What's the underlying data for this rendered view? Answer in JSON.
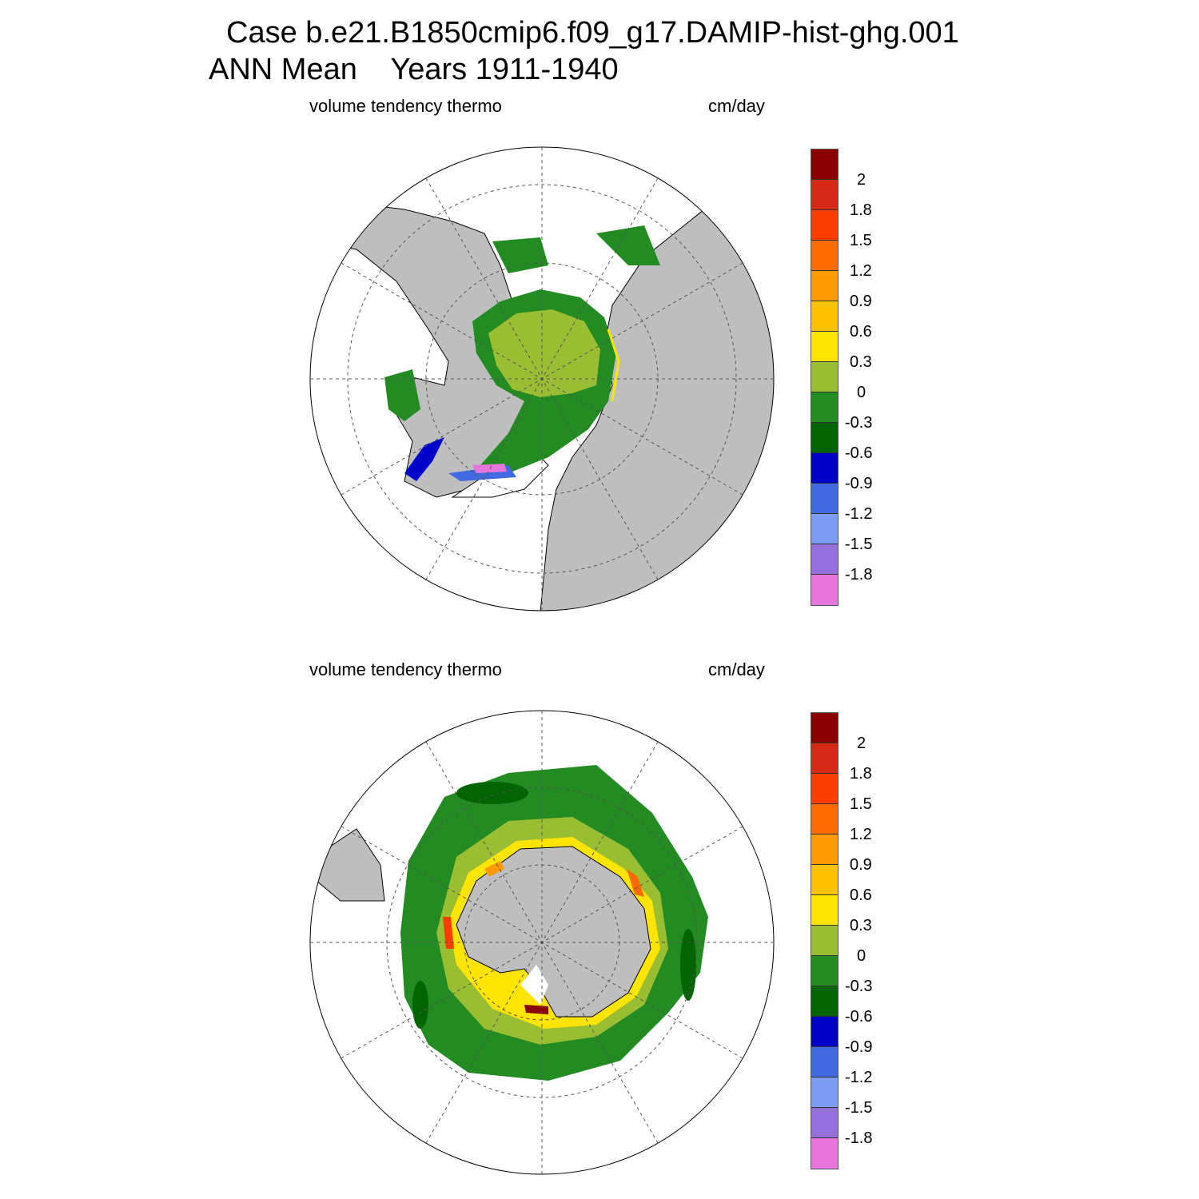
{
  "header": {
    "case_title": "Case b.e21.B1850cmip6.f09_g17.DAMIP-hist-ghg.001",
    "period_label": "ANN Mean",
    "years_label": "Years 1911-1940"
  },
  "panels": [
    {
      "hemisphere": "north",
      "variable_label": "volume tendency thermo",
      "units_label": "cm/day"
    },
    {
      "hemisphere": "south",
      "variable_label": "volume tendency thermo",
      "units_label": "cm/day"
    }
  ],
  "colorbar": {
    "colors": [
      "#8b0000",
      "#d62a14",
      "#ff3c00",
      "#ff6a00",
      "#ff9900",
      "#ffc200",
      "#ffe400",
      "#99bd33",
      "#228b22",
      "#006400",
      "#0000cd",
      "#4169e1",
      "#7b9cf3",
      "#9370db",
      "#e675dc"
    ],
    "tick_labels": [
      "2",
      "1.8",
      "1.5",
      "1.2",
      "0.9",
      "0.6",
      "0.3",
      "0",
      "-0.3",
      "-0.6",
      "-0.9",
      "-1.2",
      "-1.5",
      "-1.8"
    ]
  },
  "colors": {
    "land": "#bebebe",
    "ocean": "#ffffff",
    "near_zero_positive": "#99bd33",
    "near_zero_negative": "#228b22",
    "moderate_negative": "#006400"
  }
}
